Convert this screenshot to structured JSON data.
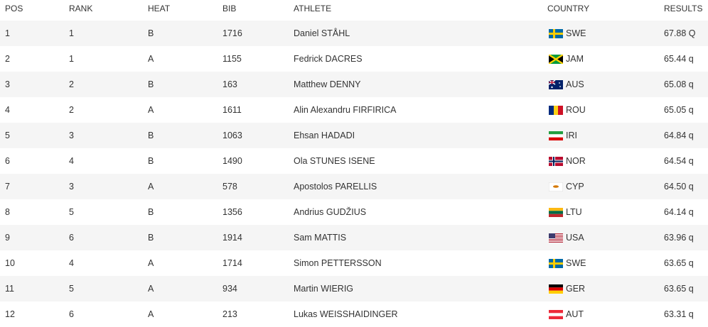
{
  "table": {
    "columns": [
      "POS",
      "RANK",
      "HEAT",
      "BIB",
      "ATHLETE",
      "COUNTRY",
      "RESULTS"
    ],
    "rows": [
      [
        "1",
        "1",
        "B",
        "1716",
        "Daniel STÅHL",
        "SWE",
        "67.88 Q"
      ],
      [
        "2",
        "1",
        "A",
        "1155",
        "Fedrick DACRES",
        "JAM",
        "65.44 q"
      ],
      [
        "3",
        "2",
        "B",
        "163",
        "Matthew DENNY",
        "AUS",
        "65.08 q"
      ],
      [
        "4",
        "2",
        "A",
        "1611",
        "Alin Alexandru FIRFIRICA",
        "ROU",
        "65.05 q"
      ],
      [
        "5",
        "3",
        "B",
        "1063",
        "Ehsan HADADI",
        "IRI",
        "64.84 q"
      ],
      [
        "6",
        "4",
        "B",
        "1490",
        "Ola STUNES ISENE",
        "NOR",
        "64.54 q"
      ],
      [
        "7",
        "3",
        "A",
        "578",
        "Apostolos PARELLIS",
        "CYP",
        "64.50 q"
      ],
      [
        "8",
        "5",
        "B",
        "1356",
        "Andrius GUDŽIUS",
        "LTU",
        "64.14 q"
      ],
      [
        "9",
        "6",
        "B",
        "1914",
        "Sam MATTIS",
        "USA",
        "63.96 q"
      ],
      [
        "10",
        "4",
        "A",
        "1714",
        "Simon PETTERSSON",
        "SWE",
        "63.65 q"
      ],
      [
        "11",
        "5",
        "A",
        "934",
        "Martin WIERIG",
        "GER",
        "63.65 q"
      ],
      [
        "12",
        "6",
        "A",
        "213",
        "Lukas WEISSHAIDINGER",
        "AUT",
        "63.31 q"
      ]
    ]
  }
}
